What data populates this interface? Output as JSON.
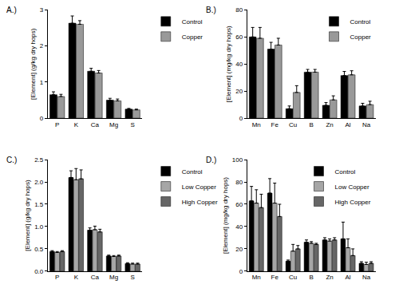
{
  "chart_data": [
    {
      "type": "bar",
      "title": "A.)",
      "y_label": "[Element] (g/kg dry hops)",
      "categories": [
        "P",
        "K",
        "Ca",
        "Mg",
        "S"
      ],
      "series": [
        {
          "name": "Control",
          "color": "#000000",
          "values": [
            0.65,
            2.63,
            1.3,
            0.5,
            0.25
          ],
          "errors": [
            0.08,
            0.2,
            0.08,
            0.05,
            0.02
          ]
        },
        {
          "name": "Copper",
          "color": "#999999",
          "values": [
            0.6,
            2.6,
            1.25,
            0.48,
            0.23
          ],
          "errors": [
            0.06,
            0.1,
            0.07,
            0.05,
            0.02
          ]
        }
      ],
      "ylim": [
        0,
        3
      ],
      "yticks": [
        0,
        1,
        2,
        3
      ],
      "grid": false,
      "legend": "right"
    },
    {
      "type": "bar",
      "title": "B.)",
      "y_label": "[Element] (mg/kg dry hops)",
      "categories": [
        "Mn",
        "Fe",
        "Cu",
        "B",
        "Zn",
        "Al",
        "Na"
      ],
      "series": [
        {
          "name": "Control",
          "color": "#000000",
          "values": [
            60,
            51,
            7,
            34,
            9.5,
            31.5,
            9
          ],
          "errors": [
            7,
            5,
            2,
            2,
            2,
            3,
            2
          ]
        },
        {
          "name": "Copper",
          "color": "#999999",
          "values": [
            59,
            54,
            19,
            34,
            13.5,
            32,
            10
          ],
          "errors": [
            8,
            5,
            5,
            2,
            3,
            3,
            2.5
          ]
        }
      ],
      "ylim": [
        0,
        80
      ],
      "yticks": [
        0,
        20,
        40,
        60,
        80
      ],
      "grid": false,
      "legend": "top-right"
    },
    {
      "type": "bar",
      "title": "C.)",
      "y_label": "[Element] (g/kg dry hops)",
      "categories": [
        "P",
        "K",
        "Ca",
        "Mg",
        "S"
      ],
      "series": [
        {
          "name": "Control",
          "color": "#000000",
          "values": [
            0.44,
            2.1,
            0.92,
            0.34,
            0.17
          ],
          "errors": [
            0.02,
            0.15,
            0.05,
            0.02,
            0.02
          ]
        },
        {
          "name": "Low Copper",
          "color": "#a6a6a6",
          "values": [
            0.42,
            2.05,
            0.93,
            0.33,
            0.16
          ],
          "errors": [
            0.02,
            0.25,
            0.08,
            0.02,
            0.02
          ]
        },
        {
          "name": "High Copper",
          "color": "#666666",
          "values": [
            0.44,
            2.07,
            0.88,
            0.34,
            0.16
          ],
          "errors": [
            0.02,
            0.2,
            0.06,
            0.02,
            0.02
          ]
        }
      ],
      "ylim": [
        0,
        2.5
      ],
      "yticks": [
        {
          "value": 0,
          "label": "0.0"
        },
        0.5,
        {
          "value": 1,
          "label": "1.0"
        },
        1.5,
        {
          "value": 2,
          "label": "2.0"
        },
        2.5
      ],
      "grid": false,
      "legend": "right"
    },
    {
      "type": "bar",
      "title": "D.)",
      "y_label": "[Element] (mg/kg dry hops)",
      "categories": [
        "Mn",
        "Fe",
        "Cu",
        "B",
        "Zn",
        "Al",
        "Na"
      ],
      "series": [
        {
          "name": "Control",
          "color": "#000000",
          "values": [
            63,
            70,
            9,
            26,
            28,
            29,
            7
          ],
          "errors": [
            13,
            13,
            1,
            2,
            2,
            15,
            1.5
          ]
        },
        {
          "name": "Low Copper",
          "color": "#a6a6a6",
          "values": [
            61,
            61,
            18,
            25,
            27,
            21,
            6
          ],
          "errors": [
            12,
            18,
            6,
            1.5,
            2,
            8,
            2
          ]
        },
        {
          "name": "High Copper",
          "color": "#666666",
          "values": [
            57,
            49,
            20,
            24,
            28,
            14,
            7
          ],
          "errors": [
            12,
            11,
            3,
            1,
            2,
            6,
            1.5
          ]
        }
      ],
      "ylim": [
        0,
        100
      ],
      "yticks": [
        0,
        20,
        40,
        60,
        80,
        100
      ],
      "grid": false,
      "legend": "top-right"
    }
  ]
}
